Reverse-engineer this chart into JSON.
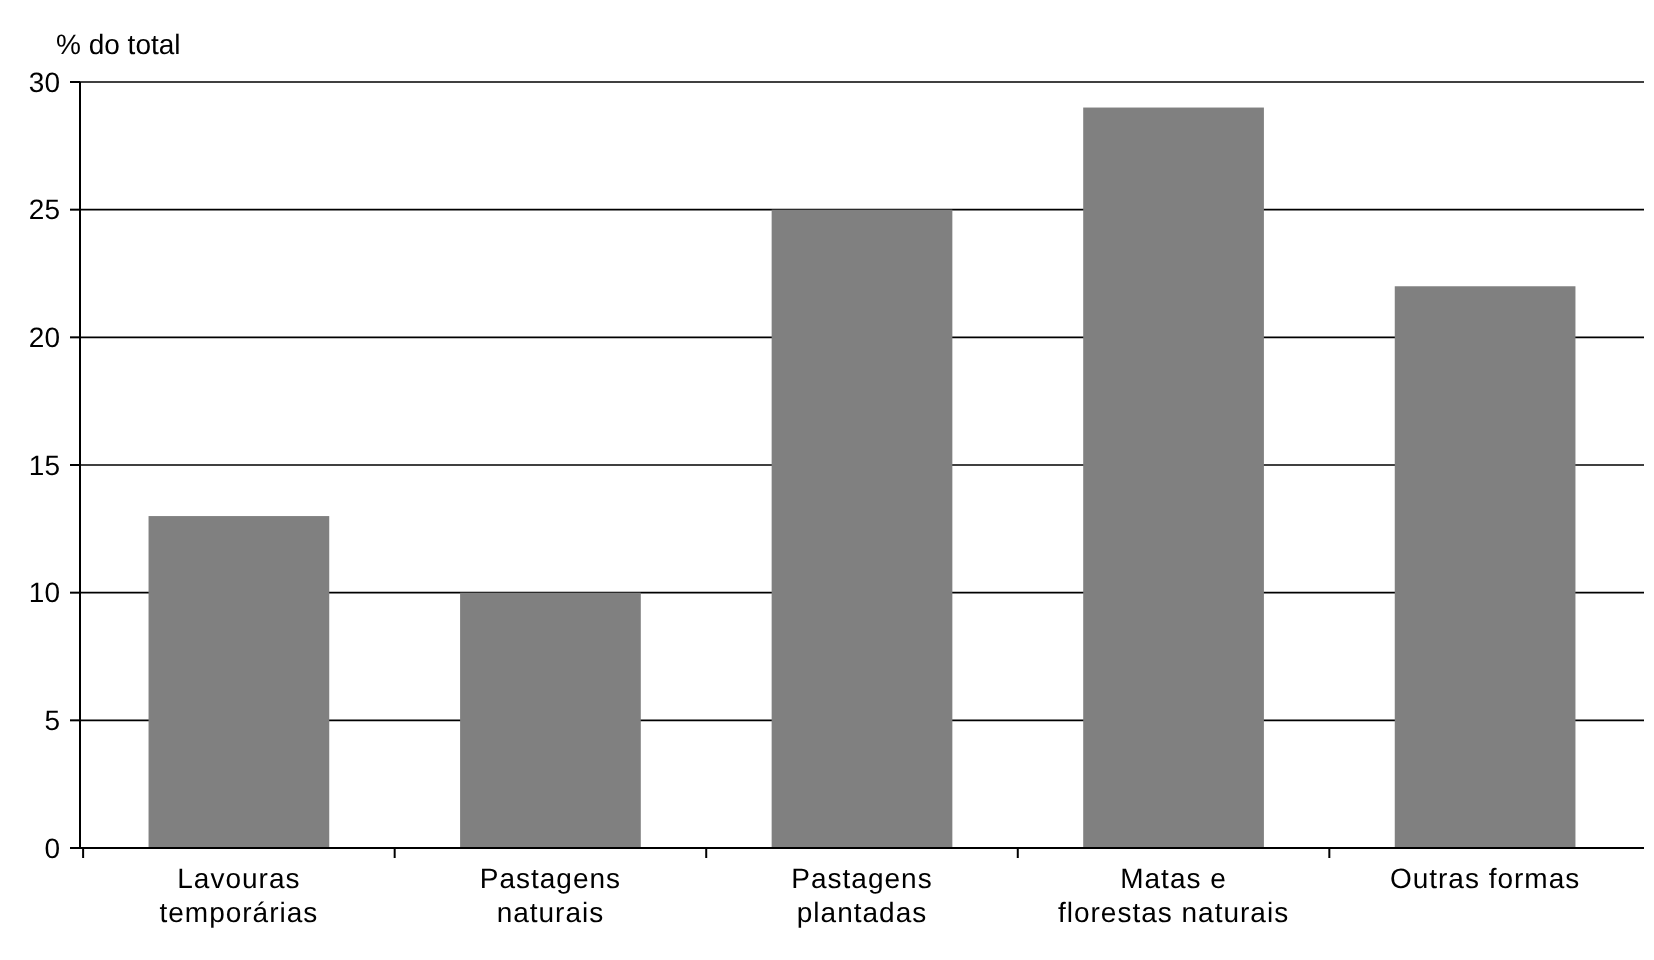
{
  "chart_data": {
    "type": "bar",
    "ylabel": "% do total",
    "categories": [
      "Lavouras\ntemporárias",
      "Pastagens\nnaturais",
      "Pastagens\nplantadas",
      "Matas e\nflorestas naturais",
      "Outras formas"
    ],
    "values": [
      13,
      10,
      25,
      29,
      22
    ],
    "color": "#808080",
    "ylim": [
      0,
      30
    ],
    "yticks": [
      0,
      5,
      10,
      15,
      20,
      25,
      30
    ],
    "grid": "y"
  }
}
